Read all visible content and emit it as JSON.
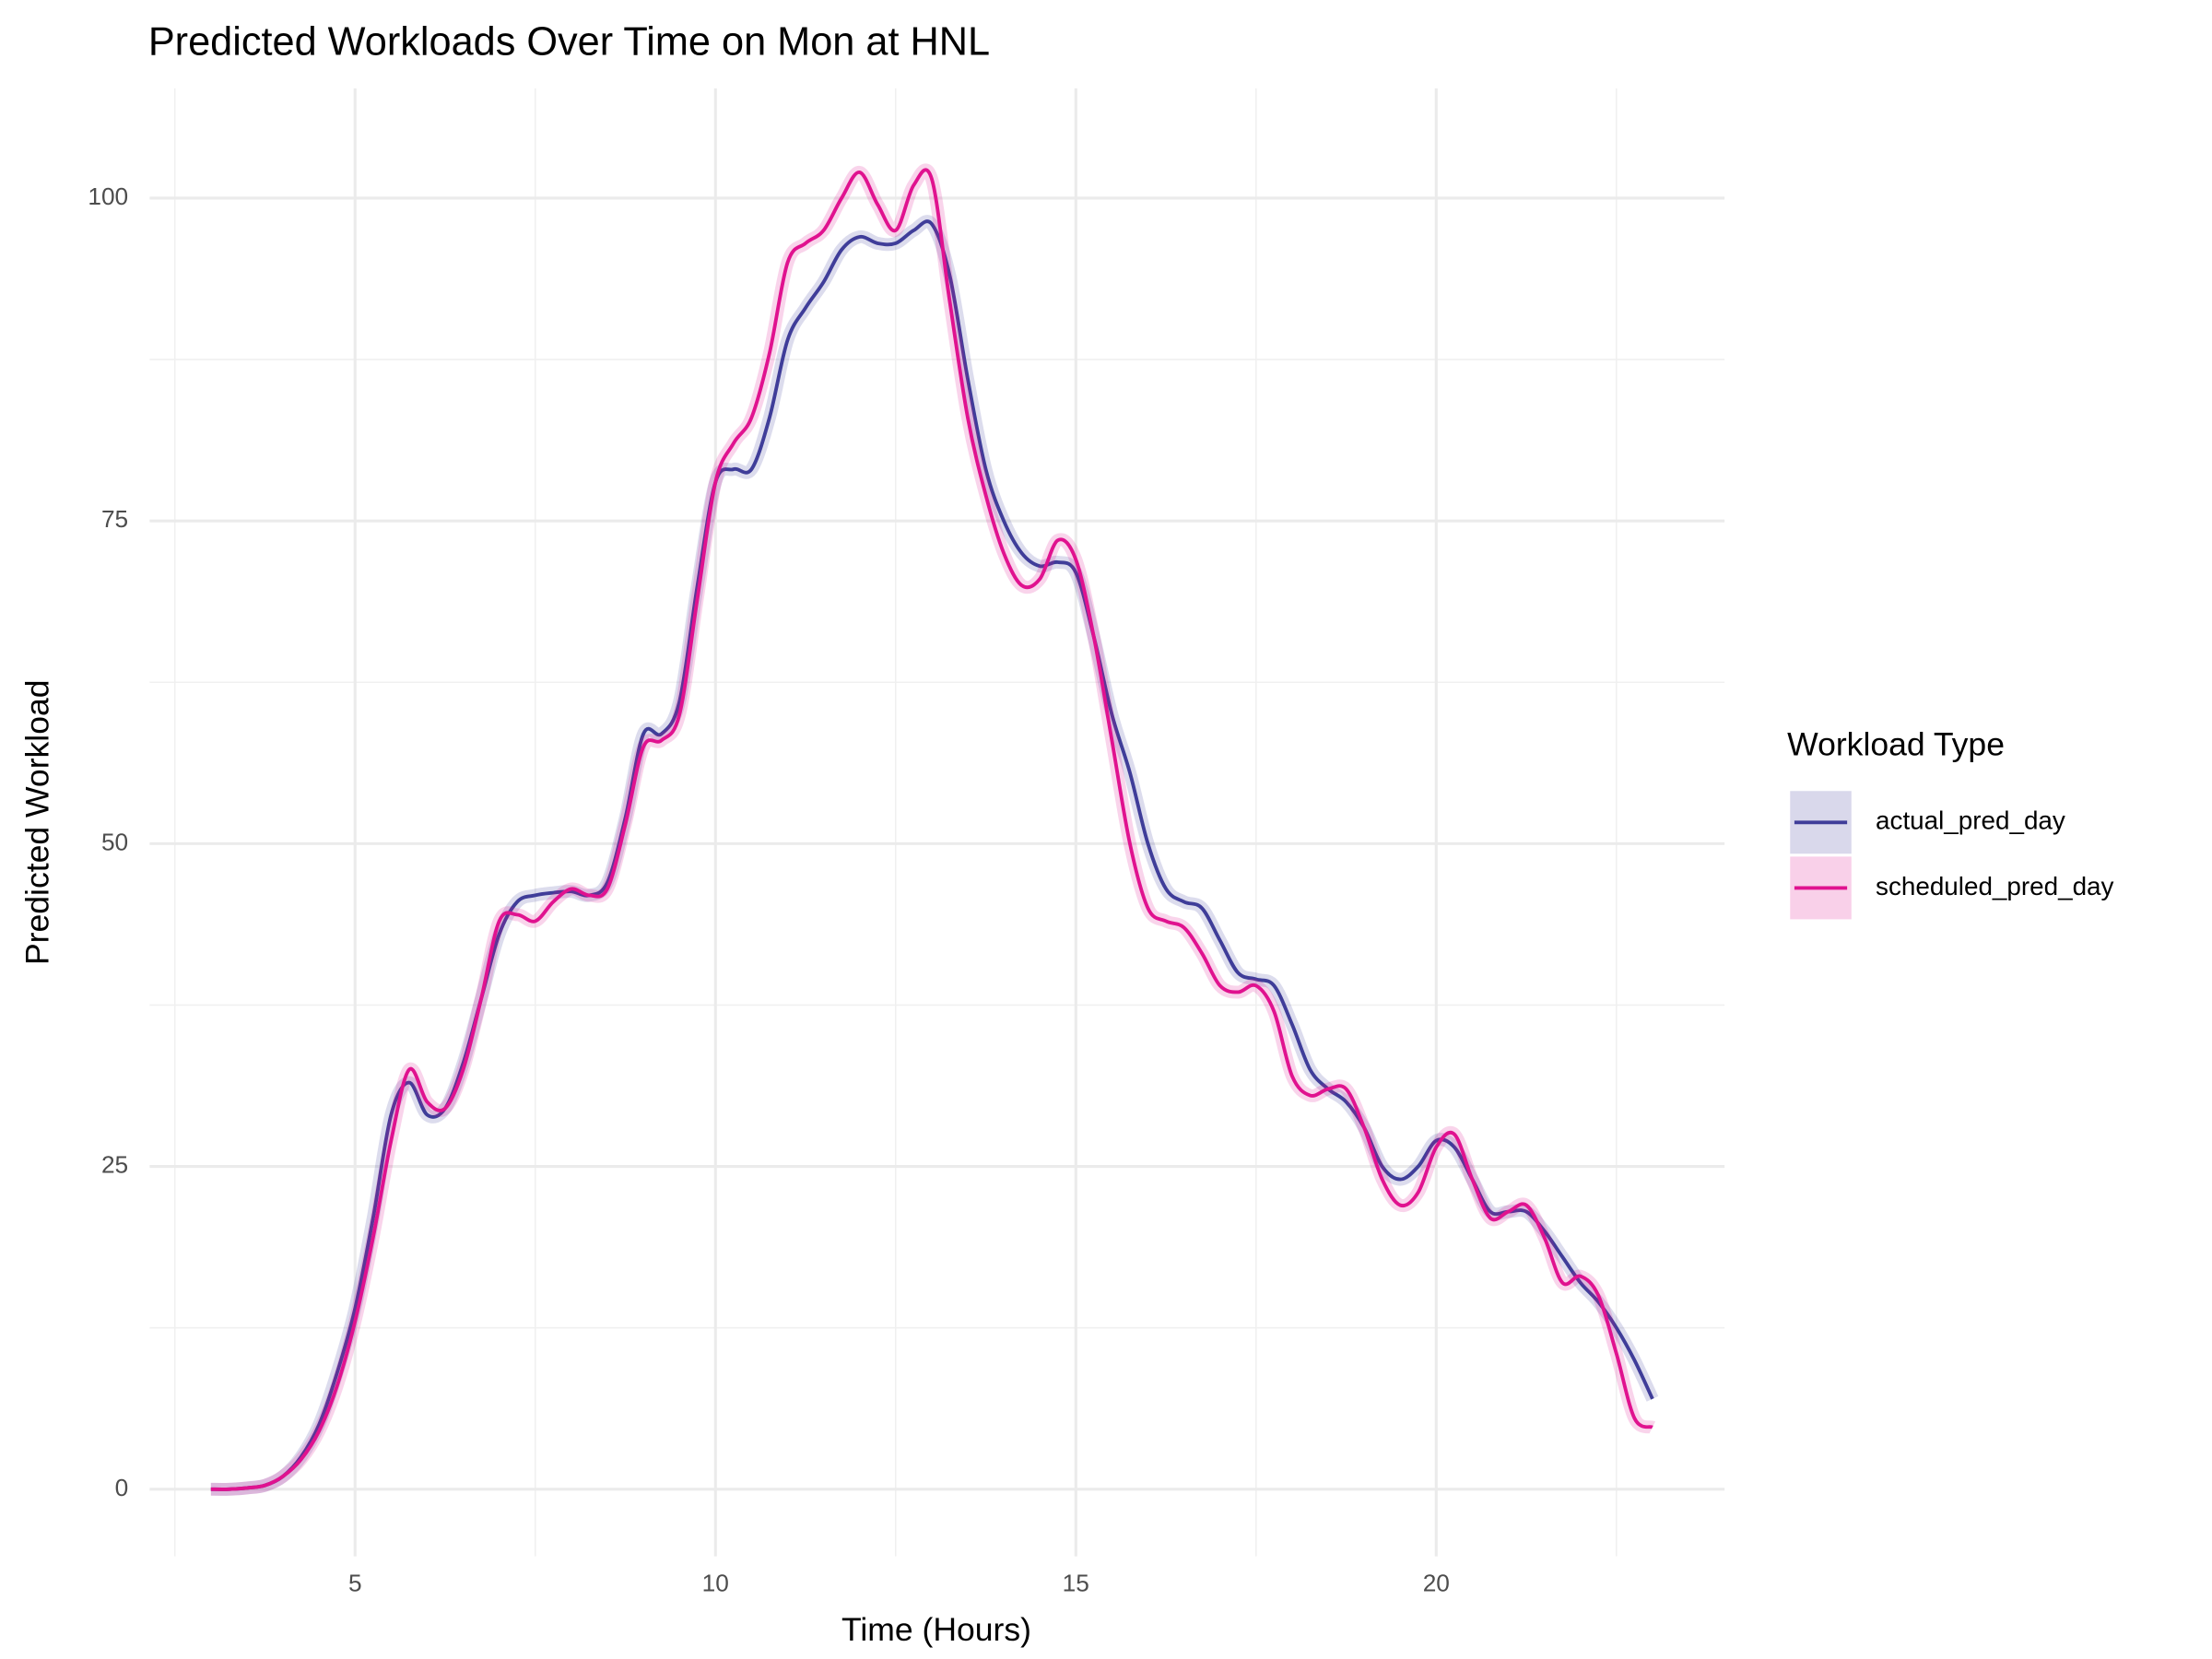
{
  "chart_data": {
    "type": "line",
    "title": "Predicted Workloads Over Time on Mon at HNL",
    "x_label": "Time (Hours)",
    "y_label": "Predicted Workload",
    "legend_title": "Workload Type",
    "legend_position": "right",
    "grid": true,
    "xlim": [
      2.15,
      24
    ],
    "ylim": [
      -5.2,
      108.5
    ],
    "xticks": [
      5,
      10,
      15,
      20
    ],
    "yticks": [
      0,
      25,
      50,
      75,
      100
    ],
    "xminor": [
      2.5,
      7.5,
      12.5,
      17.5,
      22.5
    ],
    "yminor": [
      12.5,
      37.5,
      62.5,
      87.5
    ],
    "x": [
      3,
      3.25,
      3.5,
      3.75,
      4,
      4.25,
      4.5,
      4.75,
      5,
      5.25,
      5.5,
      5.75,
      6,
      6.25,
      6.5,
      6.75,
      7,
      7.25,
      7.5,
      7.75,
      8,
      8.25,
      8.5,
      8.75,
      9,
      9.25,
      9.5,
      9.75,
      10,
      10.25,
      10.5,
      10.75,
      11,
      11.25,
      11.5,
      11.75,
      12,
      12.25,
      12.5,
      12.75,
      13,
      13.25,
      13.5,
      13.75,
      14,
      14.25,
      14.5,
      14.75,
      15,
      15.25,
      15.5,
      15.75,
      16,
      16.25,
      16.5,
      16.75,
      17,
      17.25,
      17.5,
      17.75,
      18,
      18.25,
      18.5,
      18.75,
      19,
      19.25,
      19.5,
      19.75,
      20,
      20.25,
      20.5,
      20.75,
      21,
      21.25,
      21.5,
      21.75,
      22,
      22.25,
      22.5,
      22.75,
      23
    ],
    "series": [
      {
        "name": "actual_pred_day",
        "color": "#3f3d99",
        "values": [
          0,
          0,
          0.1,
          0.3,
          1,
          2.5,
          5,
          9,
          14,
          21,
          29,
          31.5,
          29,
          29.5,
          33,
          38,
          43,
          45.5,
          46,
          46.2,
          46.3,
          46,
          47,
          52,
          58.5,
          58.5,
          61,
          70,
          78,
          79,
          79,
          83,
          89,
          91.5,
          93.5,
          96,
          97,
          96.5,
          96.5,
          97.5,
          98,
          94,
          86,
          79,
          75,
          72.5,
          71.5,
          71.8,
          71,
          66,
          60,
          55.5,
          50,
          46.5,
          45.5,
          45,
          42.5,
          40,
          39.5,
          39,
          36,
          32.5,
          31,
          30,
          28,
          25,
          24,
          25,
          27,
          26.5,
          24,
          21.5,
          21.5,
          21.5,
          20,
          18,
          16,
          14.5,
          12.5,
          10,
          7
        ]
      },
      {
        "name": "scheduled_pred_day",
        "color": "#e0128f",
        "values": [
          0,
          0,
          0.1,
          0.3,
          1,
          2.3,
          4.5,
          8,
          13,
          19.5,
          27,
          32.5,
          30,
          29.5,
          32.5,
          38,
          44,
          44.5,
          44,
          45.5,
          46.5,
          46,
          46.5,
          51.5,
          57.5,
          58,
          60,
          69,
          78,
          81,
          83,
          88,
          95,
          96.5,
          97.5,
          100,
          102,
          99.5,
          97.5,
          101,
          101.5,
          92,
          83,
          77,
          72.5,
          70,
          70.5,
          73.5,
          72,
          66,
          58,
          50,
          45,
          44,
          43.5,
          41.5,
          39,
          38.5,
          39,
          37,
          32,
          30.5,
          31,
          31,
          28,
          24,
          22,
          23,
          26.5,
          27.5,
          24,
          21,
          21.5,
          22,
          19.5,
          16,
          16.5,
          15,
          10.5,
          5.5,
          4.8
        ]
      }
    ]
  }
}
